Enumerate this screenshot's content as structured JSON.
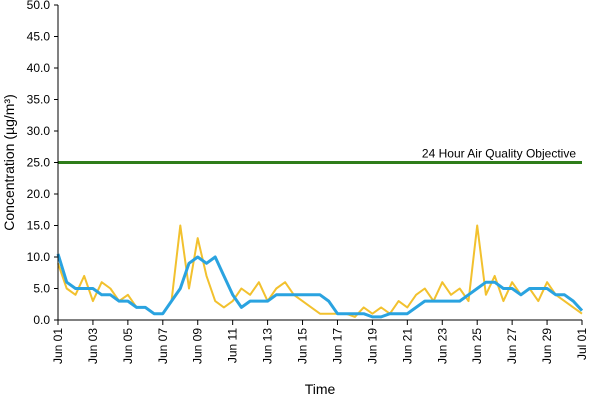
{
  "chart_data": {
    "type": "line",
    "title": "",
    "xlabel": "Time",
    "ylabel": "Concentration (µg/m³)",
    "ylim": [
      0,
      50
    ],
    "y_ticks": [
      "0.0",
      "5.0",
      "10.0",
      "15.0",
      "20.0",
      "25.0",
      "30.0",
      "35.0",
      "40.0",
      "45.0",
      "50.0"
    ],
    "x_ticks": [
      "Jun 01",
      "Jun 03",
      "Jun 05",
      "Jun 07",
      "Jun 09",
      "Jun 11",
      "Jun 13",
      "Jun 15",
      "Jun 17",
      "Jun 19",
      "Jun 21",
      "Jun 23",
      "Jun 25",
      "Jun 27",
      "Jun 29",
      "Jul 01"
    ],
    "grid": false,
    "legend": "none",
    "reference_line": {
      "value": 25.0,
      "label": "24 Hour Air Quality Objective",
      "color": "#2e7d1a"
    },
    "series": [
      {
        "color": "#f2c12e",
        "x": [
          1,
          1.5,
          2,
          2.5,
          3,
          3.5,
          4,
          4.5,
          5,
          5.5,
          6,
          6.5,
          7,
          7.5,
          8,
          8.5,
          9,
          9.5,
          10,
          10.5,
          11,
          11.5,
          12,
          12.5,
          13,
          13.5,
          14,
          14.5,
          15,
          15.5,
          16,
          16.5,
          17,
          17.5,
          18,
          18.5,
          19,
          19.5,
          20,
          20.5,
          21,
          21.5,
          22,
          22.5,
          23,
          23.5,
          24,
          24.5,
          25,
          25.5,
          26,
          26.5,
          27,
          27.5,
          28,
          28.5,
          29,
          29.5,
          30,
          30.5,
          31
        ],
        "values": [
          9,
          5,
          4,
          7,
          3,
          6,
          5,
          3,
          4,
          2,
          2,
          1,
          1,
          3,
          15,
          5,
          13,
          7,
          3,
          2,
          3,
          5,
          4,
          6,
          3,
          5,
          6,
          4,
          3,
          2,
          1,
          1,
          1,
          1,
          0.5,
          2,
          1,
          2,
          1,
          3,
          2,
          4,
          5,
          3,
          6,
          4,
          5,
          3,
          15,
          4,
          7,
          3,
          6,
          4,
          5,
          3,
          6,
          4,
          3,
          2,
          1
        ]
      },
      {
        "color": "#2aa3e0",
        "x": [
          1,
          1.5,
          2,
          2.5,
          3,
          3.5,
          4,
          4.5,
          5,
          5.5,
          6,
          6.5,
          7,
          7.5,
          8,
          8.5,
          9,
          9.5,
          10,
          10.5,
          11,
          11.5,
          12,
          12.5,
          13,
          13.5,
          14,
          14.5,
          15,
          15.5,
          16,
          16.5,
          17,
          17.5,
          18,
          18.5,
          19,
          19.5,
          20,
          20.5,
          21,
          21.5,
          22,
          22.5,
          23,
          23.5,
          24,
          24.5,
          25,
          25.5,
          26,
          26.5,
          27,
          27.5,
          28,
          28.5,
          29,
          29.5,
          30,
          30.5,
          31
        ],
        "values": [
          10.5,
          6,
          5,
          5,
          5,
          4,
          4,
          3,
          3,
          2,
          2,
          1,
          1,
          3,
          5,
          9,
          10,
          9,
          10,
          7,
          4,
          2,
          3,
          3,
          3,
          4,
          4,
          4,
          4,
          4,
          4,
          3,
          1,
          1,
          1,
          1,
          0.5,
          0.5,
          1,
          1,
          1,
          2,
          3,
          3,
          3,
          3,
          3,
          4,
          5,
          6,
          6,
          5,
          5,
          4,
          5,
          5,
          5,
          4,
          4,
          3,
          1.5
        ]
      }
    ]
  }
}
